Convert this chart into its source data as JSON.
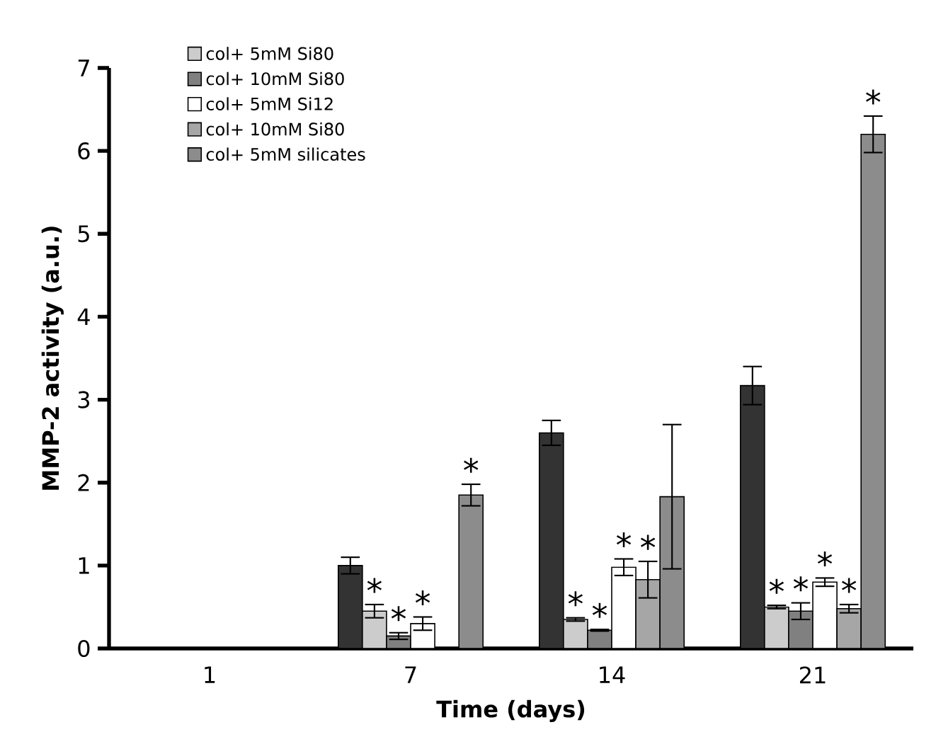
{
  "chart_data": {
    "type": "bar",
    "xlabel": "Time (days)",
    "ylabel": "MMP-2 activity (a.u.)",
    "categories": [
      "1",
      "7",
      "14",
      "21"
    ],
    "series": [
      {
        "color": "#333333",
        "values": [
          null,
          1.0,
          2.6,
          3.17
        ],
        "errors": [
          null,
          0.1,
          0.15,
          0.23
        ]
      },
      {
        "name": "col+ 5mM Si80",
        "color": "#cccccc",
        "values": [
          null,
          0.45,
          0.35,
          0.5
        ],
        "errors": [
          null,
          0.08,
          0.02,
          0.02
        ],
        "value_labels": [
          null,
          "*",
          "*",
          "*"
        ]
      },
      {
        "name": "col+ 10mM Si80",
        "color": "#808080",
        "values": [
          null,
          0.15,
          0.22,
          0.45
        ],
        "errors": [
          null,
          0.04,
          0.01,
          0.1
        ],
        "value_labels": [
          null,
          "*",
          "*",
          "*"
        ]
      },
      {
        "name": "col+ 5mM Si12",
        "color": "#ffffff",
        "values": [
          null,
          0.3,
          0.98,
          0.8
        ],
        "errors": [
          null,
          0.08,
          0.1,
          0.05
        ],
        "value_labels": [
          null,
          "*",
          "*",
          "*"
        ]
      },
      {
        "name": "col+ 10mM Si80",
        "color": "#a6a6a6",
        "values": [
          null,
          null,
          0.83,
          0.48
        ],
        "errors": [
          null,
          null,
          0.22,
          0.05
        ],
        "value_labels": [
          null,
          null,
          "*",
          "*"
        ]
      },
      {
        "name": "col+ 5mM silicates",
        "color": "#8c8c8c",
        "values": [
          null,
          1.85,
          1.83,
          6.2
        ],
        "errors": [
          null,
          0.13,
          0.87,
          0.22
        ],
        "value_labels": [
          null,
          "*",
          null,
          "*"
        ]
      }
    ],
    "ylim": [
      0,
      7
    ],
    "yticks": [
      0,
      1,
      2,
      3,
      4,
      5,
      6,
      7
    ],
    "legend": "top left"
  }
}
